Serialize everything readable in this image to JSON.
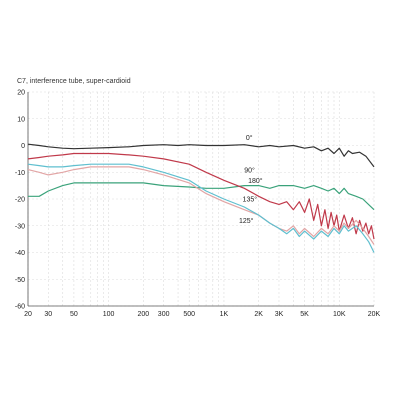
{
  "chart_data": {
    "type": "line",
    "title": "C7, interference tube, super-cardioid",
    "xlabel": "",
    "ylabel": "",
    "x_scale": "log",
    "xlim": [
      20,
      20000
    ],
    "ylim": [
      -60,
      20
    ],
    "grid": true,
    "x_ticks": [
      {
        "value": 20,
        "label": "20"
      },
      {
        "value": 30,
        "label": "30"
      },
      {
        "value": 50,
        "label": "50"
      },
      {
        "value": 100,
        "label": "100"
      },
      {
        "value": 200,
        "label": "200"
      },
      {
        "value": 300,
        "label": "300"
      },
      {
        "value": 500,
        "label": "500"
      },
      {
        "value": 1000,
        "label": "1K"
      },
      {
        "value": 2000,
        "label": "2K"
      },
      {
        "value": 3000,
        "label": "3K"
      },
      {
        "value": 5000,
        "label": "5K"
      },
      {
        "value": 10000,
        "label": "10K"
      },
      {
        "value": 20000,
        "label": "20K"
      }
    ],
    "y_ticks": [
      20,
      10,
      0,
      -10,
      -20,
      -30,
      -40,
      -50,
      -60
    ],
    "series": [
      {
        "name": "0°",
        "color": "#333333",
        "points": [
          [
            20,
            0.5
          ],
          [
            25,
            0
          ],
          [
            30,
            -0.5
          ],
          [
            40,
            -1
          ],
          [
            50,
            -1.2
          ],
          [
            70,
            -1
          ],
          [
            100,
            -0.8
          ],
          [
            150,
            -0.5
          ],
          [
            200,
            0
          ],
          [
            300,
            0.3
          ],
          [
            400,
            0
          ],
          [
            500,
            0.3
          ],
          [
            700,
            0
          ],
          [
            1000,
            0
          ],
          [
            1500,
            0.3
          ],
          [
            2000,
            -0.5
          ],
          [
            2500,
            0
          ],
          [
            3000,
            -0.5
          ],
          [
            4000,
            0
          ],
          [
            5000,
            -1
          ],
          [
            6000,
            -0.5
          ],
          [
            7000,
            -2
          ],
          [
            8000,
            -1
          ],
          [
            9000,
            -3
          ],
          [
            10000,
            -1
          ],
          [
            11000,
            -4
          ],
          [
            12000,
            -2
          ],
          [
            13000,
            -3
          ],
          [
            15000,
            -2.5
          ],
          [
            17000,
            -4
          ],
          [
            20000,
            -8
          ]
        ]
      },
      {
        "name": "90°",
        "color": "#3aa27a",
        "points": [
          [
            20,
            -19
          ],
          [
            25,
            -19
          ],
          [
            30,
            -17
          ],
          [
            40,
            -15
          ],
          [
            50,
            -14
          ],
          [
            70,
            -14
          ],
          [
            100,
            -14
          ],
          [
            150,
            -14
          ],
          [
            200,
            -14
          ],
          [
            300,
            -15
          ],
          [
            500,
            -15.5
          ],
          [
            700,
            -16
          ],
          [
            1000,
            -16
          ],
          [
            1500,
            -15
          ],
          [
            2000,
            -15
          ],
          [
            2500,
            -16
          ],
          [
            3000,
            -15
          ],
          [
            4000,
            -15
          ],
          [
            5000,
            -16
          ],
          [
            6000,
            -15
          ],
          [
            7000,
            -16
          ],
          [
            8000,
            -17
          ],
          [
            9000,
            -16
          ],
          [
            10000,
            -18
          ],
          [
            11000,
            -16
          ],
          [
            12000,
            -18
          ],
          [
            14000,
            -19
          ],
          [
            16000,
            -20
          ],
          [
            20000,
            -24
          ]
        ]
      },
      {
        "name": "180°",
        "color": "#c0394a",
        "points": [
          [
            20,
            -5
          ],
          [
            25,
            -4.5
          ],
          [
            30,
            -4
          ],
          [
            40,
            -3.5
          ],
          [
            50,
            -3
          ],
          [
            70,
            -3
          ],
          [
            100,
            -3
          ],
          [
            150,
            -3.5
          ],
          [
            200,
            -4
          ],
          [
            300,
            -5
          ],
          [
            500,
            -7
          ],
          [
            700,
            -10
          ],
          [
            1000,
            -13
          ],
          [
            1500,
            -16
          ],
          [
            2000,
            -19
          ],
          [
            2500,
            -21
          ],
          [
            3000,
            -22
          ],
          [
            3500,
            -21
          ],
          [
            4000,
            -24
          ],
          [
            4500,
            -21
          ],
          [
            5000,
            -25
          ],
          [
            5500,
            -20
          ],
          [
            6000,
            -28
          ],
          [
            6500,
            -22
          ],
          [
            7000,
            -30
          ],
          [
            7500,
            -24
          ],
          [
            8000,
            -31
          ],
          [
            8500,
            -25
          ],
          [
            9000,
            -30
          ],
          [
            9500,
            -26
          ],
          [
            10000,
            -32
          ],
          [
            11000,
            -26
          ],
          [
            12000,
            -31
          ],
          [
            13000,
            -27
          ],
          [
            14000,
            -33
          ],
          [
            15000,
            -28
          ],
          [
            16000,
            -32
          ],
          [
            17000,
            -29
          ],
          [
            18000,
            -33
          ],
          [
            19000,
            -30
          ],
          [
            20000,
            -35
          ]
        ]
      },
      {
        "name": "135°",
        "color": "#e2a5a5",
        "points": [
          [
            20,
            -9
          ],
          [
            25,
            -10
          ],
          [
            30,
            -11
          ],
          [
            40,
            -10
          ],
          [
            50,
            -9
          ],
          [
            70,
            -8
          ],
          [
            100,
            -8
          ],
          [
            150,
            -8
          ],
          [
            200,
            -9
          ],
          [
            300,
            -11
          ],
          [
            500,
            -14
          ],
          [
            700,
            -18
          ],
          [
            1000,
            -21
          ],
          [
            1500,
            -24
          ],
          [
            2000,
            -26
          ],
          [
            2500,
            -29
          ],
          [
            3000,
            -31
          ],
          [
            3500,
            -32
          ],
          [
            4000,
            -30
          ],
          [
            4500,
            -33
          ],
          [
            5000,
            -31
          ],
          [
            6000,
            -34
          ],
          [
            7000,
            -31
          ],
          [
            8000,
            -33
          ],
          [
            9000,
            -30
          ],
          [
            10000,
            -32
          ],
          [
            11000,
            -29
          ],
          [
            12000,
            -31
          ],
          [
            14000,
            -28
          ],
          [
            16000,
            -31
          ],
          [
            18000,
            -34
          ],
          [
            20000,
            -37
          ]
        ]
      },
      {
        "name": "125°",
        "color": "#5fbfcf",
        "points": [
          [
            20,
            -7
          ],
          [
            25,
            -7.5
          ],
          [
            30,
            -8
          ],
          [
            40,
            -8
          ],
          [
            50,
            -7.5
          ],
          [
            70,
            -7
          ],
          [
            100,
            -7
          ],
          [
            150,
            -7
          ],
          [
            200,
            -8
          ],
          [
            300,
            -10
          ],
          [
            500,
            -13
          ],
          [
            700,
            -17
          ],
          [
            1000,
            -20
          ],
          [
            1500,
            -23
          ],
          [
            2000,
            -26
          ],
          [
            2500,
            -29
          ],
          [
            3000,
            -31
          ],
          [
            3500,
            -33
          ],
          [
            4000,
            -31
          ],
          [
            4500,
            -34
          ],
          [
            5000,
            -32
          ],
          [
            6000,
            -35
          ],
          [
            7000,
            -32
          ],
          [
            8000,
            -34
          ],
          [
            9000,
            -31
          ],
          [
            10000,
            -33
          ],
          [
            11000,
            -30
          ],
          [
            12000,
            -32
          ],
          [
            14000,
            -30
          ],
          [
            16000,
            -33
          ],
          [
            18000,
            -36
          ],
          [
            20000,
            -40
          ]
        ]
      }
    ],
    "labels": [
      {
        "series": "0°",
        "x": 1550,
        "y": 2
      },
      {
        "series": "90°",
        "x": 1500,
        "y": -10
      },
      {
        "series": "180°",
        "x": 1620,
        "y": -14
      },
      {
        "series": "135°",
        "x": 1450,
        "y": -21
      },
      {
        "series": "125°",
        "x": 1350,
        "y": -29
      }
    ]
  }
}
